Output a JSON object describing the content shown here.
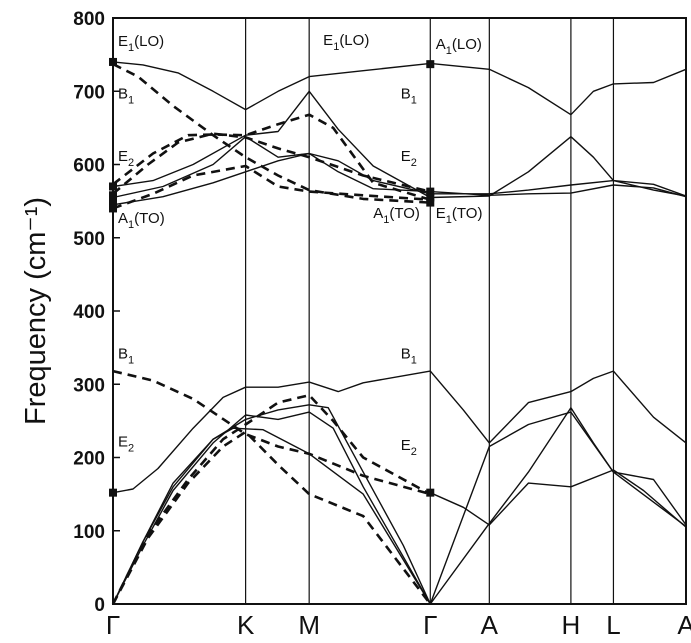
{
  "chart_data": {
    "type": "line",
    "title": "",
    "xlabel": "",
    "ylabel": "Frequency (cm⁻¹)",
    "ylim": [
      0,
      800
    ],
    "yticks": [
      "0",
      "100",
      "200",
      "300",
      "400",
      "500",
      "600",
      "700",
      "800"
    ],
    "x_points": [
      {
        "label": "Γ",
        "pos": 0.0
      },
      {
        "label": "K",
        "pos": 0.265
      },
      {
        "label": "M",
        "pos": 0.392
      },
      {
        "label": "Γ",
        "pos": 0.634
      },
      {
        "label": "A",
        "pos": 0.752
      },
      {
        "label": "H",
        "pos": 0.915
      },
      {
        "label": "L",
        "pos": 1.0
      },
      {
        "label": "A",
        "pos": 1.145
      }
    ],
    "xlim": [
      0,
      1.145
    ],
    "grid": false,
    "series": [
      {
        "style": "solid",
        "values": [
          [
            0,
            740
          ],
          [
            0.06,
            736
          ],
          [
            0.13,
            725
          ],
          [
            0.2,
            700
          ],
          [
            0.265,
            675
          ],
          [
            0.33,
            700
          ],
          [
            0.392,
            720
          ],
          [
            0.5,
            728
          ],
          [
            0.634,
            738
          ],
          [
            0.752,
            730
          ],
          [
            0.83,
            705
          ],
          [
            0.915,
            668
          ],
          [
            0.96,
            700
          ],
          [
            1.0,
            710
          ],
          [
            1.08,
            712
          ],
          [
            1.145,
            730
          ]
        ]
      },
      {
        "style": "solid",
        "values": [
          [
            0,
            570
          ],
          [
            0.08,
            578
          ],
          [
            0.16,
            600
          ],
          [
            0.265,
            640
          ],
          [
            0.33,
            645
          ],
          [
            0.392,
            700
          ],
          [
            0.45,
            648
          ],
          [
            0.52,
            598
          ],
          [
            0.634,
            555
          ],
          [
            0.752,
            557
          ],
          [
            0.83,
            590
          ],
          [
            0.915,
            638
          ],
          [
            0.96,
            610
          ],
          [
            1.0,
            578
          ],
          [
            1.08,
            565
          ],
          [
            1.145,
            557
          ]
        ]
      },
      {
        "style": "solid",
        "values": [
          [
            0,
            555
          ],
          [
            0.1,
            570
          ],
          [
            0.2,
            600
          ],
          [
            0.265,
            638
          ],
          [
            0.33,
            610
          ],
          [
            0.392,
            615
          ],
          [
            0.45,
            605
          ],
          [
            0.52,
            578
          ],
          [
            0.634,
            560
          ],
          [
            0.752,
            560
          ],
          [
            0.83,
            565
          ],
          [
            0.915,
            572
          ],
          [
            1.0,
            578
          ],
          [
            1.08,
            573
          ],
          [
            1.145,
            557
          ]
        ]
      },
      {
        "style": "solid",
        "values": [
          [
            0,
            545
          ],
          [
            0.1,
            556
          ],
          [
            0.2,
            575
          ],
          [
            0.265,
            590
          ],
          [
            0.33,
            605
          ],
          [
            0.392,
            615
          ],
          [
            0.45,
            590
          ],
          [
            0.52,
            567
          ],
          [
            0.634,
            563
          ],
          [
            0.752,
            558
          ],
          [
            0.83,
            560
          ],
          [
            0.915,
            561
          ],
          [
            1.0,
            572
          ],
          [
            1.08,
            568
          ],
          [
            1.145,
            556
          ]
        ]
      },
      {
        "style": "dashed",
        "values": [
          [
            0,
            737
          ],
          [
            0.05,
            720
          ],
          [
            0.12,
            680
          ],
          [
            0.2,
            640
          ],
          [
            0.265,
            610
          ],
          [
            0.33,
            585
          ],
          [
            0.392,
            565
          ],
          [
            0.5,
            553
          ],
          [
            0.634,
            548
          ]
        ]
      },
      {
        "style": "dashed",
        "values": [
          [
            0,
            560
          ],
          [
            0.07,
            600
          ],
          [
            0.13,
            630
          ],
          [
            0.2,
            642
          ],
          [
            0.265,
            637
          ],
          [
            0.33,
            622
          ],
          [
            0.392,
            610
          ],
          [
            0.5,
            585
          ],
          [
            0.634,
            563
          ]
        ]
      },
      {
        "style": "dashed",
        "values": [
          [
            0,
            573
          ],
          [
            0.08,
            615
          ],
          [
            0.15,
            640
          ],
          [
            0.2,
            641
          ],
          [
            0.265,
            640
          ],
          [
            0.33,
            655
          ],
          [
            0.392,
            668
          ],
          [
            0.44,
            650
          ],
          [
            0.52,
            575
          ],
          [
            0.634,
            552
          ]
        ]
      },
      {
        "style": "dashed",
        "values": [
          [
            0,
            540
          ],
          [
            0.08,
            560
          ],
          [
            0.16,
            585
          ],
          [
            0.265,
            598
          ],
          [
            0.33,
            570
          ],
          [
            0.392,
            563
          ],
          [
            0.5,
            558
          ],
          [
            0.634,
            552
          ]
        ]
      },
      {
        "style": "solid",
        "values": [
          [
            0,
            152
          ],
          [
            0.04,
            157
          ],
          [
            0.09,
            185
          ],
          [
            0.16,
            240
          ],
          [
            0.22,
            282
          ],
          [
            0.265,
            296
          ],
          [
            0.33,
            296
          ],
          [
            0.392,
            303
          ],
          [
            0.45,
            290
          ],
          [
            0.5,
            302
          ],
          [
            0.634,
            318
          ],
          [
            0.7,
            265
          ],
          [
            0.752,
            220
          ],
          [
            0.83,
            275
          ],
          [
            0.915,
            290
          ],
          [
            0.96,
            308
          ],
          [
            1.0,
            318
          ],
          [
            1.08,
            255
          ],
          [
            1.145,
            220
          ]
        ]
      },
      {
        "style": "solid",
        "values": [
          [
            0,
            0
          ],
          [
            0.06,
            80
          ],
          [
            0.12,
            155
          ],
          [
            0.2,
            220
          ],
          [
            0.265,
            258
          ],
          [
            0.33,
            252
          ],
          [
            0.392,
            262
          ],
          [
            0.44,
            240
          ],
          [
            0.5,
            160
          ],
          [
            0.634,
            0
          ]
        ]
      },
      {
        "style": "solid",
        "values": [
          [
            0,
            0
          ],
          [
            0.06,
            85
          ],
          [
            0.12,
            160
          ],
          [
            0.2,
            225
          ],
          [
            0.265,
            252
          ],
          [
            0.33,
            265
          ],
          [
            0.392,
            272
          ],
          [
            0.43,
            268
          ],
          [
            0.5,
            180
          ],
          [
            0.58,
            80
          ],
          [
            0.634,
            0
          ]
        ]
      },
      {
        "style": "solid",
        "values": [
          [
            0,
            0
          ],
          [
            0.06,
            85
          ],
          [
            0.12,
            165
          ],
          [
            0.2,
            225
          ],
          [
            0.24,
            240
          ],
          [
            0.3,
            238
          ],
          [
            0.392,
            205
          ],
          [
            0.5,
            150
          ],
          [
            0.634,
            0
          ]
        ]
      },
      {
        "style": "solid",
        "values": [
          [
            0.634,
            152
          ],
          [
            0.7,
            132
          ],
          [
            0.752,
            108
          ],
          [
            0.83,
            165
          ],
          [
            0.915,
            160
          ],
          [
            1.0,
            183
          ],
          [
            1.06,
            155
          ],
          [
            1.145,
            105
          ]
        ]
      },
      {
        "style": "solid",
        "values": [
          [
            0.634,
            0
          ],
          [
            0.752,
            110
          ],
          [
            0.83,
            180
          ],
          [
            0.915,
            268
          ],
          [
            0.96,
            220
          ],
          [
            1.0,
            180
          ],
          [
            1.08,
            170
          ],
          [
            1.145,
            108
          ]
        ]
      },
      {
        "style": "solid",
        "values": [
          [
            0.634,
            0
          ],
          [
            0.752,
            215
          ],
          [
            0.83,
            245
          ],
          [
            0.915,
            262
          ],
          [
            1.0,
            180
          ],
          [
            1.145,
            106
          ]
        ]
      },
      {
        "style": "dashed",
        "values": [
          [
            0,
            318
          ],
          [
            0.08,
            305
          ],
          [
            0.16,
            280
          ],
          [
            0.265,
            232
          ],
          [
            0.33,
            215
          ],
          [
            0.392,
            205
          ],
          [
            0.5,
            175
          ],
          [
            0.634,
            150
          ]
        ]
      },
      {
        "style": "dashed",
        "values": [
          [
            0,
            0
          ],
          [
            0.07,
            95
          ],
          [
            0.15,
            170
          ],
          [
            0.22,
            225
          ],
          [
            0.265,
            245
          ],
          [
            0.33,
            275
          ],
          [
            0.392,
            285
          ],
          [
            0.44,
            250
          ],
          [
            0.5,
            200
          ],
          [
            0.634,
            150
          ]
        ]
      },
      {
        "style": "dashed",
        "values": [
          [
            0,
            0
          ],
          [
            0.07,
            90
          ],
          [
            0.15,
            165
          ],
          [
            0.22,
            215
          ],
          [
            0.265,
            235
          ],
          [
            0.33,
            190
          ],
          [
            0.392,
            150
          ],
          [
            0.5,
            120
          ],
          [
            0.634,
            0
          ]
        ]
      }
    ],
    "markers": [
      {
        "x": 0,
        "y": 740
      },
      {
        "x": 0,
        "y": 570
      },
      {
        "x": 0,
        "y": 558
      },
      {
        "x": 0,
        "y": 548
      },
      {
        "x": 0,
        "y": 540
      },
      {
        "x": 0,
        "y": 152
      },
      {
        "x": 0.634,
        "y": 737
      },
      {
        "x": 0.634,
        "y": 563
      },
      {
        "x": 0.634,
        "y": 555
      },
      {
        "x": 0.634,
        "y": 548
      },
      {
        "x": 0.634,
        "y": 152
      }
    ],
    "annotations": [
      {
        "main": "E",
        "sub": "1",
        "rest": "(LO)",
        "x": 0.01,
        "y": 762
      },
      {
        "main": "B",
        "sub": "1",
        "rest": "",
        "x": 0.01,
        "y": 690
      },
      {
        "main": "E",
        "sub": "2",
        "rest": "",
        "x": 0.01,
        "y": 605
      },
      {
        "main": "A",
        "sub": "1",
        "rest": "(TO)",
        "x": 0.01,
        "y": 520
      },
      {
        "main": "E",
        "sub": "1",
        "rest": "(LO)",
        "x": 0.42,
        "y": 763
      },
      {
        "main": "A",
        "sub": "1",
        "rest": "(LO)",
        "x": 0.645,
        "y": 758
      },
      {
        "main": "B",
        "sub": "1",
        "rest": "",
        "x": 0.575,
        "y": 690
      },
      {
        "main": "E",
        "sub": "2",
        "rest": "",
        "x": 0.575,
        "y": 605
      },
      {
        "main": "A",
        "sub": "1",
        "rest": "(TO)",
        "x": 0.52,
        "y": 527
      },
      {
        "main": "E",
        "sub": "1",
        "rest": "(TO)",
        "x": 0.645,
        "y": 527
      },
      {
        "main": "B",
        "sub": "1",
        "rest": "",
        "x": 0.01,
        "y": 335
      },
      {
        "main": "E",
        "sub": "2",
        "rest": "",
        "x": 0.01,
        "y": 215
      },
      {
        "main": "B",
        "sub": "1",
        "rest": "",
        "x": 0.575,
        "y": 335
      },
      {
        "main": "E",
        "sub": "2",
        "rest": "",
        "x": 0.575,
        "y": 210
      }
    ]
  }
}
